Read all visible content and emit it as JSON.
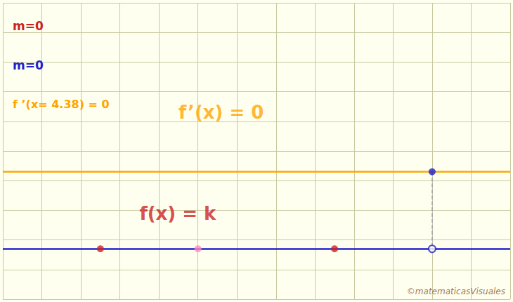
{
  "chart_data": {
    "type": "scatter",
    "xlim": [
      0,
      13
    ],
    "ylim": [
      0,
      10
    ],
    "xticks": [
      0,
      1,
      2,
      3,
      4,
      5,
      6,
      7,
      8,
      9,
      10,
      11,
      12,
      13
    ],
    "yticks": [
      0,
      1,
      2,
      3,
      4,
      5,
      6,
      7,
      8,
      9,
      10
    ],
    "grid": true,
    "tick_labels": false,
    "series": [
      {
        "type": "hline",
        "color": "#2222cc",
        "values": [
          1.7
        ]
      },
      {
        "type": "hline",
        "color": "#ffa500",
        "values": [
          4.3
        ]
      },
      {
        "type": "line",
        "line_style": "dashed",
        "color": "#8888bb",
        "x": [
          11.0,
          11.0
        ],
        "values": [
          4.3,
          1.7
        ]
      },
      {
        "type": "scatter",
        "color": "#cc2222",
        "x": [
          2.5,
          8.5
        ],
        "values": [
          1.7,
          1.7
        ]
      },
      {
        "type": "scatter",
        "color": "#ff88bb",
        "x": [
          5.0
        ],
        "values": [
          1.7
        ]
      },
      {
        "type": "scatter",
        "marker": "open",
        "color": "#2222cc",
        "x": [
          11.0
        ],
        "values": [
          1.7
        ]
      },
      {
        "type": "scatter",
        "color": "#2222cc",
        "x": [
          11.0
        ],
        "values": [
          4.3
        ]
      }
    ],
    "annotations": [
      {
        "text": "f(x) = k",
        "color": "#cc2222",
        "x": 3.5,
        "y": 2.9
      },
      {
        "text": "f’(x) = 0",
        "color": "#ffa500",
        "x": 4.5,
        "y": 6.3
      },
      {
        "text": "m=0",
        "color": "#cc2222"
      },
      {
        "text": "m=0",
        "color": "#2222cc"
      },
      {
        "text": "f ’(x= 4.38) = 0",
        "color": "#ffa500"
      }
    ],
    "watermark": "©matematicasVisuales"
  }
}
